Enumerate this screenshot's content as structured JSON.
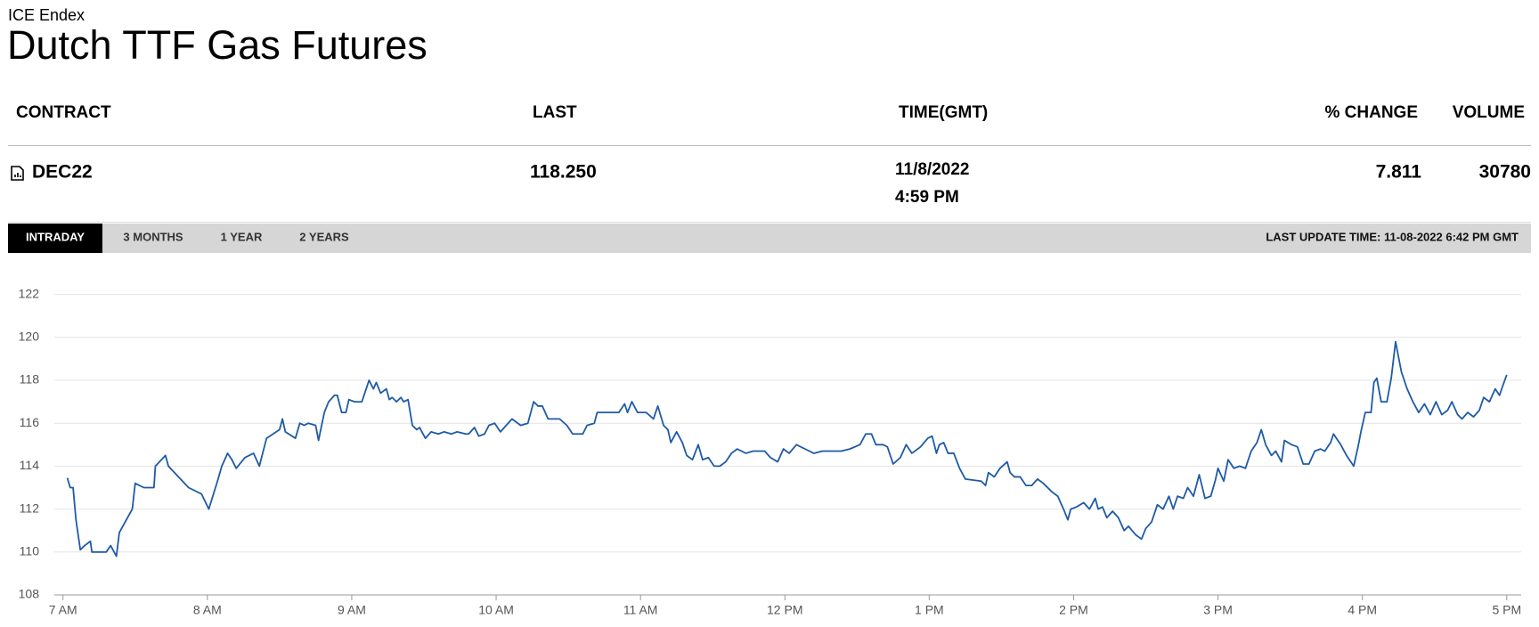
{
  "header": {
    "exchange": "ICE Endex",
    "title": "Dutch TTF Gas Futures"
  },
  "table": {
    "columns": [
      "CONTRACT",
      "LAST",
      "TIME(GMT)",
      "% CHANGE",
      "VOLUME"
    ],
    "rows": [
      {
        "contract": "DEC22",
        "last": "118.250",
        "date": "11/8/2022",
        "time": "4:59 PM",
        "change": "7.811",
        "volume": "30780"
      }
    ]
  },
  "tabs": [
    "INTRADAY",
    "3 MONTHS",
    "1 YEAR",
    "2 YEARS"
  ],
  "active_tab": 0,
  "last_update": "LAST UPDATE TIME: 11-08-2022 6:42 PM GMT",
  "chart_data": {
    "type": "line",
    "color": "#1f5aa6",
    "grid": true,
    "xlim": [
      6.94,
      17.1
    ],
    "ylim": [
      108,
      122
    ],
    "yticks": [
      108,
      110,
      112,
      114,
      116,
      118,
      120,
      122
    ],
    "xticks": [
      {
        "value": 7,
        "label": "7 AM"
      },
      {
        "value": 8,
        "label": "8 AM"
      },
      {
        "value": 9,
        "label": "9 AM"
      },
      {
        "value": 10,
        "label": "10 AM"
      },
      {
        "value": 11,
        "label": "11 AM"
      },
      {
        "value": 12,
        "label": "12 PM"
      },
      {
        "value": 13,
        "label": "1 PM"
      },
      {
        "value": 14,
        "label": "2 PM"
      },
      {
        "value": 15,
        "label": "3 PM"
      },
      {
        "value": 16,
        "label": "4 PM"
      },
      {
        "value": 17,
        "label": "5 PM"
      }
    ],
    "x": [
      7.03,
      7.05,
      7.07,
      7.09,
      7.12,
      7.15,
      7.19,
      7.2,
      7.3,
      7.33,
      7.37,
      7.39,
      7.48,
      7.5,
      7.56,
      7.63,
      7.64,
      7.71,
      7.73,
      7.87,
      7.96,
      8.01,
      8.07,
      8.1,
      8.14,
      8.17,
      8.2,
      8.26,
      8.32,
      8.36,
      8.41,
      8.5,
      8.52,
      8.54,
      8.61,
      8.64,
      8.67,
      8.7,
      8.75,
      8.77,
      8.81,
      8.84,
      8.88,
      8.9,
      8.93,
      8.96,
      8.98,
      9.02,
      9.07,
      9.09,
      9.12,
      9.15,
      9.17,
      9.2,
      9.24,
      9.26,
      9.28,
      9.31,
      9.34,
      9.36,
      9.39,
      9.42,
      9.45,
      9.47,
      9.51,
      9.55,
      9.6,
      9.64,
      9.69,
      9.73,
      9.79,
      9.81,
      9.85,
      9.88,
      9.92,
      9.95,
      9.99,
      10.03,
      10.07,
      10.11,
      10.17,
      10.22,
      10.26,
      10.29,
      10.32,
      10.36,
      10.44,
      10.49,
      10.53,
      10.6,
      10.63,
      10.68,
      10.7,
      10.78,
      10.85,
      10.89,
      10.91,
      10.94,
      10.98,
      11.04,
      11.09,
      11.12,
      11.16,
      11.19,
      11.21,
      11.25,
      11.29,
      11.32,
      11.36,
      11.4,
      11.43,
      11.47,
      11.51,
      11.55,
      11.59,
      11.63,
      11.67,
      11.73,
      11.78,
      11.86,
      11.9,
      11.95,
      11.99,
      12.03,
      12.08,
      12.14,
      12.2,
      12.26,
      12.34,
      12.39,
      12.45,
      12.52,
      12.56,
      12.6,
      12.63,
      12.68,
      12.71,
      12.75,
      12.8,
      12.84,
      12.88,
      12.94,
      12.99,
      13.02,
      13.05,
      13.07,
      13.1,
      13.13,
      13.17,
      13.21,
      13.25,
      13.36,
      13.39,
      13.41,
      13.45,
      13.49,
      13.54,
      13.56,
      13.59,
      13.63,
      13.67,
      13.71,
      13.75,
      13.79,
      13.85,
      13.89,
      13.93,
      13.96,
      13.98,
      14.02,
      14.07,
      14.11,
      14.15,
      14.17,
      14.2,
      14.23,
      14.27,
      14.31,
      14.35,
      14.38,
      14.43,
      14.47,
      14.5,
      14.54,
      14.58,
      14.62,
      14.66,
      14.69,
      14.72,
      14.76,
      14.79,
      14.83,
      14.87,
      14.91,
      14.95,
      14.98,
      15.0,
      15.04,
      15.07,
      15.11,
      15.15,
      15.19,
      15.23,
      15.27,
      15.3,
      15.33,
      15.37,
      15.4,
      15.44,
      15.46,
      15.51,
      15.55,
      15.59,
      15.63,
      15.67,
      15.71,
      15.74,
      15.78,
      15.8,
      15.85,
      15.89,
      15.94,
      15.97,
      15.99,
      16.02,
      16.06,
      16.08,
      16.1,
      16.13,
      16.17,
      16.2,
      16.23,
      16.27,
      16.31,
      16.35,
      16.39,
      16.43,
      16.47,
      16.51,
      16.55,
      16.59,
      16.62,
      16.66,
      16.69,
      16.73,
      16.77,
      16.81,
      16.84,
      16.88,
      16.92,
      16.95,
      16.97,
      17.0
    ],
    "values": [
      113.45,
      113,
      113,
      111.5,
      110.1,
      110.3,
      110.5,
      110,
      110,
      110.3,
      109.8,
      110.9,
      112,
      113.2,
      113,
      113,
      114,
      114.5,
      114,
      113,
      112.7,
      112,
      113.3,
      114,
      114.6,
      114.3,
      113.9,
      114.4,
      114.6,
      114,
      115.3,
      115.7,
      116.2,
      115.6,
      115.3,
      116,
      115.9,
      116,
      115.9,
      115.2,
      116.5,
      117,
      117.3,
      117.3,
      116.5,
      116.5,
      117.1,
      117,
      117,
      117.4,
      118,
      117.6,
      117.9,
      117.4,
      117.6,
      117.1,
      117.2,
      117,
      117.2,
      117,
      117.1,
      115.9,
      115.7,
      115.8,
      115.3,
      115.6,
      115.5,
      115.6,
      115.5,
      115.6,
      115.5,
      115.5,
      115.8,
      115.4,
      115.5,
      115.9,
      116,
      115.6,
      115.9,
      116.2,
      115.9,
      116,
      117,
      116.8,
      116.8,
      116.2,
      116.2,
      115.9,
      115.5,
      115.5,
      115.9,
      116,
      116.5,
      116.5,
      116.5,
      116.9,
      116.5,
      117,
      116.5,
      116.5,
      116.2,
      116.8,
      115.9,
      115.7,
      115.1,
      115.6,
      115.1,
      114.5,
      114.3,
      115,
      114.3,
      114.4,
      114,
      114,
      114.2,
      114.6,
      114.8,
      114.6,
      114.7,
      114.7,
      114.4,
      114.2,
      114.8,
      114.6,
      115,
      114.8,
      114.6,
      114.7,
      114.7,
      114.7,
      114.8,
      115,
      115.5,
      115.5,
      115,
      115,
      114.9,
      114.1,
      114.4,
      115,
      114.6,
      114.9,
      115.3,
      115.4,
      114.6,
      115,
      115.1,
      114.6,
      114.6,
      113.9,
      113.4,
      113.3,
      113.1,
      113.7,
      113.5,
      113.9,
      114.2,
      113.7,
      113.5,
      113.5,
      113.1,
      113.1,
      113.4,
      113.2,
      112.8,
      112.6,
      112,
      111.5,
      112,
      112.1,
      112.3,
      112,
      112.5,
      112,
      112.1,
      111.6,
      111.9,
      111.6,
      111,
      111.2,
      110.8,
      110.6,
      111.1,
      111.4,
      112.2,
      112,
      112.6,
      112,
      112.6,
      112.5,
      113,
      112.6,
      113.6,
      112.5,
      112.6,
      113.3,
      113.9,
      113.3,
      114.3,
      113.9,
      114,
      113.9,
      114.7,
      115.1,
      115.7,
      115,
      114.5,
      114.7,
      114.2,
      115.2,
      115,
      114.9,
      114.1,
      114.1,
      114.7,
      114.8,
      114.7,
      115.1,
      115.5,
      115,
      114.5,
      114,
      114.9,
      115.6,
      116.5,
      116.5,
      117.9,
      118.1,
      117,
      117,
      118.1,
      119.8,
      118.4,
      117.6,
      117,
      116.5,
      116.9,
      116.4,
      117,
      116.4,
      116.6,
      117,
      116.4,
      116.2,
      116.5,
      116.3,
      116.6,
      117.2,
      117,
      117.6,
      117.3,
      117.7,
      118.25
    ]
  }
}
